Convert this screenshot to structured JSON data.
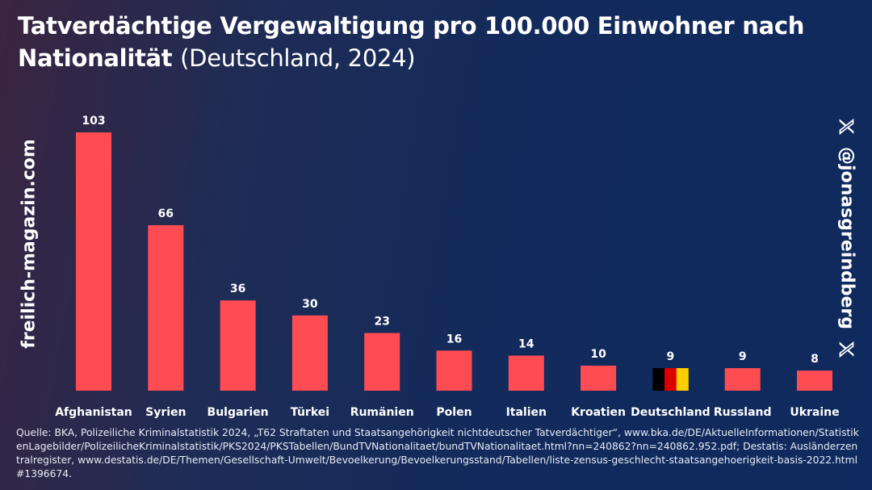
{
  "header": {
    "title_bold": "Tatverdächtige Vergewaltigung pro 100.000 Einwohner nach Nationalität",
    "title_normal": "(Deutschland, 2024)"
  },
  "side_left": {
    "text": "freilich-magazin.com"
  },
  "side_right": {
    "handle": "@jonasgreindberg",
    "icon": "x-logo-icon"
  },
  "colors": {
    "bar": "#ff4c52",
    "text": "#ffffff",
    "flag": [
      "#000000",
      "#dd0000",
      "#ffce00"
    ]
  },
  "chart_data": {
    "type": "bar",
    "title": "Tatverdächtige Vergewaltigung pro 100.000 Einwohner nach Nationalität (Deutschland, 2024)",
    "categories": [
      "Afghanistan",
      "Syrien",
      "Bulgarien",
      "Türkei",
      "Rumänien",
      "Polen",
      "Italien",
      "Kroatien",
      "Deutschland",
      "Russland",
      "Ukraine"
    ],
    "values": [
      103,
      66,
      36,
      30,
      23,
      16,
      14,
      10,
      9,
      9,
      8
    ],
    "highlight": {
      "category": "Deutschland",
      "style": "german-flag"
    },
    "xlabel": "",
    "ylabel": "",
    "ylim": [
      0,
      103
    ],
    "grid": false,
    "legend": "none",
    "data_labels": true
  },
  "source": {
    "text": "Quelle: BKA, Polizeiliche Kriminalstatistik 2024, „T62 Straftaten und Staatsangehörigkeit nichtdeutscher Tatverdächtiger“, www.bka.de/DE/AktuelleInformationen/StatistikenLagebilder/PolizeilicheKriminalstatistik/PKS2024/PKSTabellen/BundTVNationalitaet/bundTVNationalitaet.html?nn=240862?nn=240862.952.pdf; Destatis: Ausländerzentralregister, www.destatis.de/DE/Themen/Gesellschaft-Umwelt/Bevoelkerung/Bevoelkerungsstand/Tabellen/liste-zensus-geschlecht-staatsangehoerigkeit-basis-2022.html#1396674."
  }
}
